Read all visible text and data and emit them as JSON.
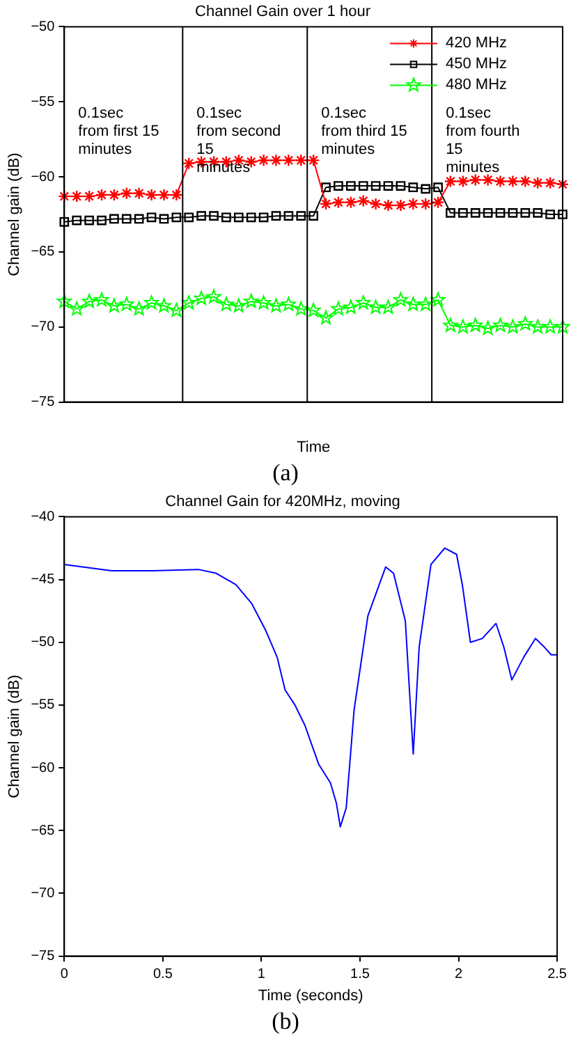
{
  "chart_data": [
    {
      "type": "line",
      "title": "Channel Gain over 1 hour",
      "xlabel": "Time",
      "ylabel": "Channel gain (dB)",
      "categories": [
        null,
        null,
        null,
        null,
        null,
        null,
        null,
        null,
        null,
        null,
        null,
        null,
        null,
        null,
        null,
        null,
        null,
        null,
        null,
        null,
        null,
        null,
        null,
        null,
        null,
        null,
        null,
        null,
        null,
        null,
        null,
        null,
        null,
        null,
        null,
        null,
        null,
        null,
        null,
        null,
        null
      ],
      "series": [
        {
          "name": "420 MHz",
          "color": "#ff0000",
          "marker": "cross",
          "values": [
            -61.3,
            -61.3,
            -61.3,
            -61.2,
            -61.2,
            -61.1,
            -61.1,
            -61.2,
            -61.2,
            -61.2,
            -59.1,
            -59.0,
            -59.0,
            -59.0,
            -58.9,
            -59.0,
            -58.9,
            -58.9,
            -58.9,
            -58.9,
            -58.9,
            -61.8,
            -61.7,
            -61.7,
            -61.6,
            -61.8,
            -61.9,
            -61.9,
            -61.8,
            -61.8,
            -61.7,
            -60.3,
            -60.3,
            -60.2,
            -60.2,
            -60.3,
            -60.3,
            -60.3,
            -60.4,
            -60.4,
            -60.5
          ]
        },
        {
          "name": "450 MHz",
          "color": "#000000",
          "marker": "square",
          "values": [
            -63.0,
            -62.9,
            -62.9,
            -62.9,
            -62.8,
            -62.8,
            -62.8,
            -62.7,
            -62.8,
            -62.7,
            -62.7,
            -62.6,
            -62.6,
            -62.7,
            -62.7,
            -62.7,
            -62.7,
            -62.6,
            -62.6,
            -62.6,
            -62.6,
            -60.7,
            -60.6,
            -60.6,
            -60.6,
            -60.6,
            -60.6,
            -60.6,
            -60.7,
            -60.8,
            -60.7,
            -62.4,
            -62.4,
            -62.4,
            -62.4,
            -62.4,
            -62.4,
            -62.4,
            -62.4,
            -62.5,
            -62.5
          ]
        },
        {
          "name": "480 MHz",
          "color": "#00ff00",
          "marker": "star",
          "values": [
            -68.3,
            -68.8,
            -68.3,
            -68.2,
            -68.6,
            -68.5,
            -68.8,
            -68.4,
            -68.6,
            -68.9,
            -68.4,
            -68.1,
            -68.0,
            -68.5,
            -68.6,
            -68.3,
            -68.4,
            -68.6,
            -68.5,
            -68.8,
            -68.9,
            -69.4,
            -68.8,
            -68.7,
            -68.4,
            -68.7,
            -68.7,
            -68.2,
            -68.5,
            -68.5,
            -68.2,
            -69.9,
            -70.0,
            -69.9,
            -70.1,
            -69.9,
            -70.0,
            -69.8,
            -70.0,
            -70.0,
            -70.0
          ]
        }
      ],
      "ylim": [
        -75,
        -50
      ],
      "yticks": [
        -75,
        -70,
        -65,
        -60,
        -55,
        -50
      ],
      "legend": "top right",
      "grid": false,
      "annotations": [
        "0.1sec\nfrom first 15\nminutes",
        "0.1sec\nfrom second\n15\nminutes",
        "0.1sec\nfrom third 15\nminutes",
        "0.1sec\nfrom fourth\n15\nminutes",
        "(a)"
      ]
    },
    {
      "type": "line",
      "title": "Channel Gain for 420MHz, moving",
      "xlabel": "Time (seconds)",
      "ylabel": "Channel gain (dB)",
      "x": [
        0,
        0.24,
        0.45,
        0.68,
        0.77,
        0.87,
        0.95,
        1.02,
        1.08,
        1.12,
        1.17,
        1.22,
        1.29,
        1.35,
        1.38,
        1.4,
        1.43,
        1.47,
        1.54,
        1.63,
        1.67,
        1.73,
        1.77,
        1.8,
        1.86,
        1.93,
        1.99,
        2.02,
        2.06,
        2.12,
        2.19,
        2.23,
        2.27,
        2.33,
        2.39,
        2.43,
        2.47,
        2.5
      ],
      "series": [
        {
          "color": "#0000ff",
          "values": [
            -43.8,
            -44.3,
            -44.3,
            -44.2,
            -44.5,
            -45.4,
            -46.9,
            -49.0,
            -51.2,
            -53.8,
            -55.0,
            -56.6,
            -59.7,
            -61.2,
            -62.8,
            -64.7,
            -63.2,
            -55.4,
            -47.9,
            -44.0,
            -44.5,
            -48.3,
            -58.9,
            -50.4,
            -43.8,
            -42.5,
            -43.0,
            -45.5,
            -50.0,
            -49.7,
            -48.5,
            -50.4,
            -53.0,
            -51.2,
            -49.7,
            -50.3,
            -51.0,
            -51.0
          ]
        }
      ],
      "xlim": [
        0,
        2.5
      ],
      "xticks": [
        0,
        0.5,
        1,
        1.5,
        2,
        2.5
      ],
      "ylim": [
        -75,
        -40
      ],
      "yticks": [
        -75,
        -70,
        -65,
        -60,
        -55,
        -50,
        -45,
        -40
      ],
      "marker": "none",
      "legend": false,
      "grid": false,
      "annotations": [
        "(b)"
      ]
    }
  ]
}
